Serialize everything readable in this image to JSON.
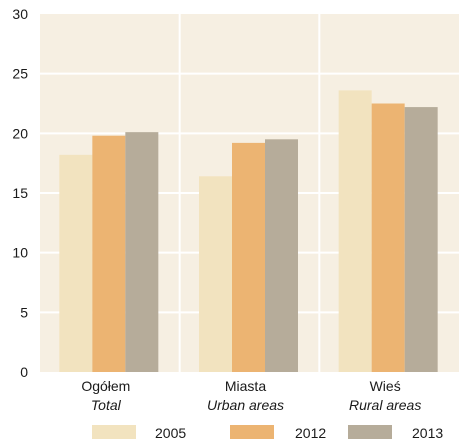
{
  "colors": {
    "plot_background": "#f6efe2",
    "grid": "#ffffff",
    "series": [
      "#f2e3bf",
      "#ecb472",
      "#b6ac9a"
    ]
  },
  "chart_data": {
    "type": "bar",
    "categories": [
      {
        "label": "Ogółem",
        "sublabel": "Total"
      },
      {
        "label": "Miasta",
        "sublabel": "Urban areas"
      },
      {
        "label": "Wieś",
        "sublabel": "Rural areas"
      }
    ],
    "series": [
      {
        "name": "2005",
        "values": [
          18.2,
          16.4,
          23.6
        ]
      },
      {
        "name": "2012",
        "values": [
          19.8,
          19.2,
          22.5
        ]
      },
      {
        "name": "2013",
        "values": [
          20.1,
          19.5,
          22.2
        ]
      }
    ],
    "ylim": [
      0,
      30
    ],
    "yticks": [
      0,
      5,
      10,
      15,
      20,
      25,
      30
    ],
    "grid": true,
    "legend_position": "bottom",
    "title": "",
    "xlabel": "",
    "ylabel": ""
  }
}
